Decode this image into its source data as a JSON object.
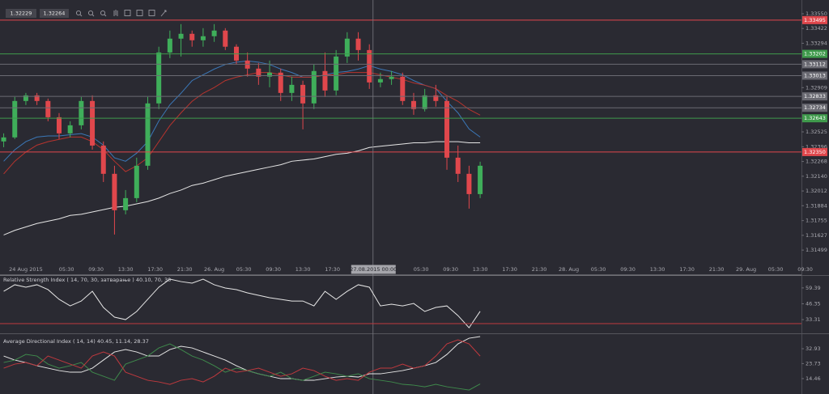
{
  "toolbar": {
    "prices": [
      "1.32229",
      "1.32264"
    ]
  },
  "chart_data": [
    {
      "type": "candlestick",
      "x": [
        -3,
        -1.5,
        0,
        1.5,
        3,
        4.5,
        6,
        7.5,
        9,
        10.5,
        12,
        13.5,
        15,
        16.5,
        18,
        19.5,
        21,
        22.5,
        24,
        25.5,
        27,
        28.5,
        30,
        31.5,
        33,
        34.5,
        36,
        37.5,
        39,
        40.5,
        42,
        43.5,
        45,
        46.5,
        48,
        49.5,
        51,
        52.5,
        54,
        55.5,
        57,
        58.5,
        60,
        61.5
      ],
      "open": [
        1.32442,
        1.32477,
        1.32793,
        1.32842,
        1.32793,
        1.32652,
        1.32512,
        1.32582,
        1.32793,
        1.32406,
        1.32161,
        1.31845,
        1.3195,
        1.32231,
        1.32772,
        1.33214,
        1.33334,
        1.33376,
        1.3332,
        1.33355,
        1.33404,
        1.33264,
        1.33144,
        1.33074,
        1.33004,
        1.33039,
        1.32863,
        1.32933,
        1.32772,
        1.33053,
        1.32884,
        1.33179,
        1.33334,
        1.33235,
        1.32954,
        1.32983,
        1.33004,
        1.32793,
        1.32723,
        1.32842,
        1.32793,
        1.32301,
        1.32161,
        1.31985
      ],
      "high": [
        1.32512,
        1.32828,
        1.32863,
        1.32863,
        1.32814,
        1.32688,
        1.32617,
        1.32828,
        1.32842,
        1.32442,
        1.32231,
        1.3202,
        1.32301,
        1.32828,
        1.33264,
        1.33404,
        1.3346,
        1.33404,
        1.33425,
        1.3346,
        1.33425,
        1.33285,
        1.33214,
        1.33123,
        1.33144,
        1.33074,
        1.33004,
        1.32969,
        1.33109,
        1.33214,
        1.33235,
        1.3339,
        1.3339,
        1.33285,
        1.33039,
        1.33053,
        1.33039,
        1.32863,
        1.32898,
        1.32933,
        1.32828,
        1.32406,
        1.32231,
        1.32266
      ],
      "low": [
        1.32392,
        1.32463,
        1.32758,
        1.32758,
        1.32617,
        1.32463,
        1.32477,
        1.32547,
        1.32371,
        1.3209,
        1.31634,
        1.31809,
        1.31915,
        1.32196,
        1.32723,
        1.33165,
        1.33179,
        1.33264,
        1.33264,
        1.33306,
        1.33235,
        1.33109,
        1.33004,
        1.32933,
        1.32912,
        1.32793,
        1.32793,
        1.32547,
        1.32723,
        1.32828,
        1.32842,
        1.33123,
        1.33144,
        1.32898,
        1.32912,
        1.32933,
        1.32758,
        1.32673,
        1.32702,
        1.32744,
        1.32196,
        1.3209,
        1.31859,
        1.3195
      ],
      "close": [
        1.32477,
        1.32793,
        1.32842,
        1.32793,
        1.32652,
        1.32512,
        1.32582,
        1.32793,
        1.32406,
        1.32161,
        1.31845,
        1.3195,
        1.32231,
        1.32772,
        1.33214,
        1.33334,
        1.33376,
        1.3332,
        1.33355,
        1.33404,
        1.33264,
        1.33144,
        1.33074,
        1.33004,
        1.33039,
        1.32863,
        1.32933,
        1.32772,
        1.33053,
        1.32884,
        1.33179,
        1.33334,
        1.33235,
        1.32954,
        1.32983,
        1.33004,
        1.32793,
        1.32723,
        1.32842,
        1.32793,
        1.32301,
        1.32161,
        1.31985,
        1.32231
      ],
      "up_color": "#3fae5a",
      "down_color": "#e0474c",
      "series": [
        {
          "color": "#3b78b8",
          "values": [
            1.3227,
            1.3237,
            1.3244,
            1.3248,
            1.3249,
            1.3249,
            1.325,
            1.3251,
            1.3248,
            1.3241,
            1.323,
            1.3227,
            1.3234,
            1.3244,
            1.3262,
            1.3276,
            1.3286,
            1.3297,
            1.3302,
            1.3307,
            1.3311,
            1.3313,
            1.3314,
            1.3313,
            1.3311,
            1.3307,
            1.3304,
            1.33,
            1.33,
            1.3302,
            1.3304,
            1.3305,
            1.3307,
            1.331,
            1.3307,
            1.3305,
            1.3302,
            1.3297,
            1.3293,
            1.329,
            1.3279,
            1.3269,
            1.3255,
            1.3248
          ]
        },
        {
          "color": "#b8342e",
          "values": [
            1.3216,
            1.3227,
            1.3235,
            1.3241,
            1.3244,
            1.3246,
            1.3248,
            1.3248,
            1.3244,
            1.3237,
            1.3227,
            1.3218,
            1.3223,
            1.323,
            1.3244,
            1.3258,
            1.3269,
            1.3279,
            1.3286,
            1.3291,
            1.3297,
            1.33,
            1.3302,
            1.3304,
            1.3304,
            1.3302,
            1.33,
            1.33,
            1.33,
            1.3302,
            1.3302,
            1.3304,
            1.3304,
            1.3304,
            1.3302,
            1.33,
            1.3298,
            1.3295,
            1.3293,
            1.329,
            1.3284,
            1.3279,
            1.3272,
            1.3267
          ]
        },
        {
          "color": "#e6e6e6",
          "values": [
            1.3163,
            1.3167,
            1.317,
            1.3173,
            1.3175,
            1.3177,
            1.318,
            1.3181,
            1.3183,
            1.3185,
            1.3187,
            1.3188,
            1.319,
            1.3192,
            1.3195,
            1.3199,
            1.3202,
            1.3206,
            1.3208,
            1.3211,
            1.3214,
            1.3216,
            1.3218,
            1.322,
            1.3222,
            1.3224,
            1.3227,
            1.3228,
            1.3229,
            1.3231,
            1.3233,
            1.3234,
            1.3236,
            1.3239,
            1.324,
            1.3241,
            1.3242,
            1.3243,
            1.3243,
            1.3244,
            1.3244,
            1.3244,
            1.3243,
            1.3243
          ]
        }
      ],
      "hlines": [
        {
          "value": 1.33495,
          "color": "#e0474c"
        },
        {
          "value": 1.33202,
          "color": "#3f9a4c"
        },
        {
          "value": 1.33112,
          "color": "#6a6a72"
        },
        {
          "value": 1.33013,
          "color": "#6a6a72"
        },
        {
          "value": 1.32833,
          "color": "#6a6a72"
        },
        {
          "value": 1.32734,
          "color": "#6a6a72"
        },
        {
          "value": 1.32643,
          "color": "#3f9a4c"
        },
        {
          "value": 1.3235,
          "label": "1.32350",
          "color": "#e0474c"
        }
      ],
      "xlim": [
        -3.5,
        105
      ],
      "ylim": [
        1.3137,
        1.3355
      ],
      "yticks": [
        {
          "value": 1.3355,
          "label": "1.33550"
        },
        1.33422,
        1.33294,
        1.32909,
        1.32525,
        1.32396,
        1.32268,
        {
          "value": 1.3214,
          "label": "1.32140"
        },
        1.32012,
        1.31884,
        1.31755,
        1.31627,
        1.31499
      ],
      "xticks": [
        {
          "value": 0,
          "label": "24 Aug 2015"
        },
        {
          "value": 5.5,
          "label": "05:30"
        },
        {
          "value": 9.5,
          "label": "09:30"
        },
        {
          "value": 13.5,
          "label": "13:30"
        },
        {
          "value": 17.5,
          "label": "17:30"
        },
        {
          "value": 21.5,
          "label": "21:30"
        },
        {
          "value": 25.5,
          "label": "26. Aug"
        },
        {
          "value": 29.5,
          "label": "05:30"
        },
        {
          "value": 33.5,
          "label": "09:30"
        },
        {
          "value": 37.5,
          "label": "13:30"
        },
        {
          "value": 41.5,
          "label": "17:30"
        },
        {
          "value": 53.5,
          "label": "05:30"
        },
        {
          "value": 57.5,
          "label": "09:30"
        },
        {
          "value": 61.5,
          "label": "13:30"
        },
        {
          "value": 65.5,
          "label": "17:30"
        },
        {
          "value": 69.5,
          "label": "21:30"
        },
        {
          "value": 73.5,
          "label": "28. Aug"
        },
        {
          "value": 77.5,
          "label": "05:30"
        },
        {
          "value": 81.5,
          "label": "09:30"
        },
        {
          "value": 85.5,
          "label": "13:30"
        },
        {
          "value": 89.5,
          "label": "17:30"
        },
        {
          "value": 93.5,
          "label": "21:30"
        },
        {
          "value": 97.5,
          "label": "29. Aug"
        },
        {
          "value": 101.5,
          "label": "05:30"
        },
        {
          "value": 105.5,
          "label": "09:30"
        }
      ],
      "crosshair": {
        "x": 47,
        "label": "27.08.2015 00:00"
      }
    },
    {
      "type": "line",
      "title": "Relative Strength Index ( 14, 70, 30, затварање ) 40.10, 70, 30",
      "x": [
        -3,
        -1.5,
        0,
        1.5,
        3,
        4.5,
        6,
        7.5,
        9,
        10.5,
        12,
        13.5,
        15,
        16.5,
        18,
        19.5,
        21,
        22.5,
        24,
        25.5,
        27,
        28.5,
        30,
        31.5,
        33,
        34.5,
        36,
        37.5,
        39,
        40.5,
        42,
        43.5,
        45,
        46.5,
        48,
        49.5,
        51,
        52.5,
        54,
        55.5,
        57,
        58.5,
        60,
        61.5
      ],
      "series": [
        {
          "color": "#e6e6e6",
          "values": [
            56.6,
            62.0,
            60.0,
            62.0,
            58.0,
            50.0,
            44.6,
            48.6,
            56.6,
            43.3,
            35.3,
            33.3,
            40.0,
            50.0,
            60.0,
            66.6,
            64.6,
            63.3,
            66.6,
            62.0,
            59.3,
            58.0,
            55.3,
            53.3,
            51.3,
            50.0,
            48.6,
            48.6,
            44.6,
            56.6,
            50.0,
            56.6,
            62.0,
            60.0,
            44.6,
            46.0,
            44.6,
            46.6,
            40.0,
            43.3,
            44.6,
            36.6,
            26.6,
            40.1
          ]
        }
      ],
      "levels": [
        {
          "value": 70,
          "color": "#8a8a90"
        },
        {
          "value": 30,
          "color": "#c0393e"
        }
      ],
      "xlim": [
        -3.5,
        105
      ],
      "ylim": [
        22.6,
        70.5
      ],
      "yticks": [
        59.39,
        46.35,
        33.31
      ]
    },
    {
      "type": "line",
      "title": "Average Directional Index ( 14, 14) 40.45, 11.14, 28.37",
      "x": [
        -3,
        -1.5,
        0,
        1.5,
        3,
        4.5,
        6,
        7.5,
        9,
        10.5,
        12,
        13.5,
        15,
        16.5,
        18,
        19.5,
        21,
        22.5,
        24,
        25.5,
        27,
        28.5,
        30,
        31.5,
        33,
        34.5,
        36,
        37.5,
        39,
        40.5,
        42,
        43.5,
        45,
        46.5,
        48,
        49.5,
        51,
        52.5,
        54,
        55.5,
        57,
        58.5,
        60,
        61.5
      ],
      "series": [
        {
          "color": "#e6e6e6",
          "values": [
            28.4,
            25.9,
            24.4,
            22.4,
            20.9,
            19.4,
            18.4,
            18.4,
            20.9,
            25.9,
            30.9,
            32.4,
            30.9,
            28.4,
            28.4,
            32.4,
            34.4,
            33.4,
            30.9,
            28.4,
            25.9,
            22.4,
            19.4,
            17.4,
            15.9,
            14.4,
            14.4,
            13.4,
            13.4,
            14.4,
            15.4,
            15.9,
            15.4,
            17.4,
            17.4,
            18.4,
            19.4,
            20.9,
            22.4,
            24.4,
            29.4,
            35.9,
            39.4,
            40.45
          ]
        },
        {
          "color": "#3f8a4c",
          "values": [
            24.4,
            25.9,
            29.4,
            28.4,
            23.4,
            20.9,
            22.4,
            24.4,
            18.4,
            15.9,
            13.4,
            23.4,
            25.9,
            28.4,
            33.4,
            35.9,
            32.4,
            28.4,
            25.9,
            22.4,
            18.4,
            20.9,
            19.4,
            17.4,
            15.9,
            18.4,
            14.4,
            13.4,
            15.9,
            18.4,
            17.4,
            15.9,
            17.4,
            14.4,
            13.4,
            12.4,
            10.9,
            10.4,
            9.4,
            10.9,
            9.4,
            8.4,
            7.4,
            11.14
          ]
        },
        {
          "color": "#c0393e",
          "values": [
            20.9,
            23.4,
            24.4,
            22.4,
            28.4,
            25.9,
            23.4,
            20.9,
            28.4,
            30.9,
            28.4,
            18.4,
            15.9,
            13.4,
            12.4,
            10.9,
            13.4,
            14.4,
            12.4,
            15.9,
            20.9,
            18.4,
            19.4,
            20.9,
            18.4,
            15.9,
            17.4,
            20.9,
            19.4,
            15.9,
            13.4,
            14.4,
            13.4,
            18.4,
            20.9,
            20.9,
            23.4,
            20.9,
            22.4,
            28.4,
            35.9,
            38.4,
            35.9,
            28.37
          ]
        }
      ],
      "xlim": [
        -3.5,
        105
      ],
      "ylim": [
        4.93,
        40.93
      ],
      "yticks": [
        32.93,
        23.73,
        14.46
      ]
    }
  ]
}
